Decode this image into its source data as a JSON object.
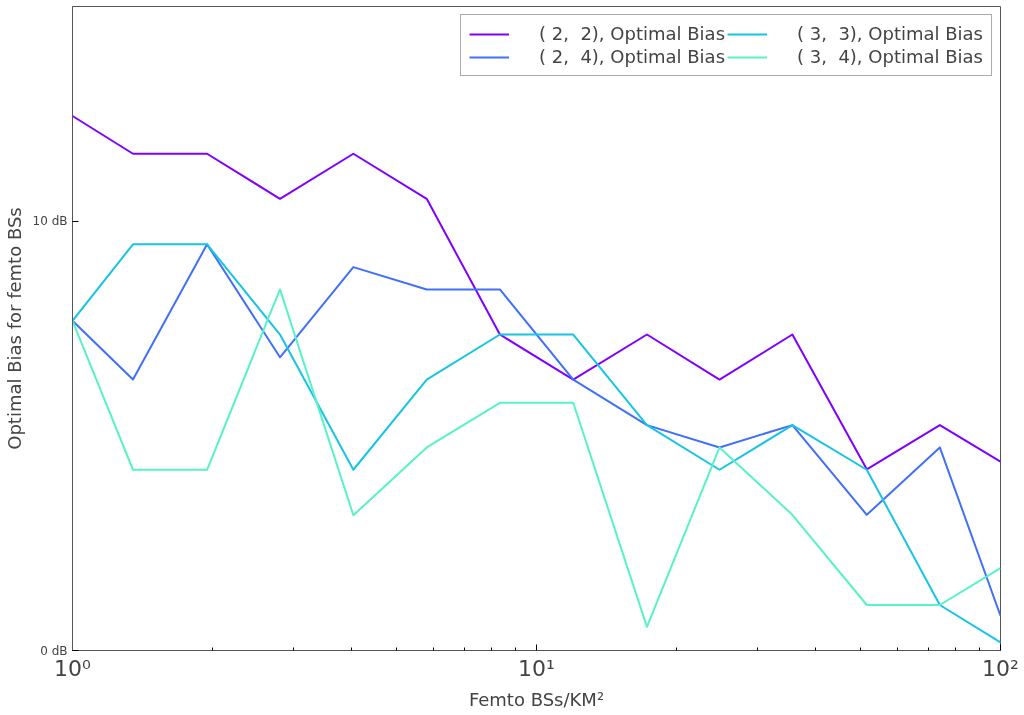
{
  "chart_data": {
    "type": "line",
    "xlabel": "Femto BSs/KM²",
    "ylabel": "Optimal Bias for femto BSs",
    "x": [
      1,
      1.35,
      1.95,
      2.8,
      4.03,
      5.8,
      8.34,
      12.0,
      17.3,
      24.8,
      35.6,
      51.5,
      74,
      100
    ],
    "series": [
      {
        "name": "( 2,  2), Optimal Bias",
        "color": "#8000ff",
        "values": [
          12.45,
          11.57,
          11.57,
          10.52,
          11.57,
          10.52,
          7.36,
          6.31,
          7.36,
          6.31,
          7.36,
          4.22,
          5.25,
          4.4
        ]
      },
      {
        "name": "( 2,  4), Optimal Bias",
        "color": "#4070f8",
        "values": [
          7.68,
          6.31,
          9.46,
          6.83,
          8.93,
          8.41,
          8.41,
          6.31,
          5.25,
          4.73,
          5.25,
          3.16,
          4.73,
          0.81
        ]
      },
      {
        "name": "( 3,  3), Optimal Bias",
        "color": "#18c4e4",
        "values": [
          7.68,
          9.46,
          9.46,
          7.36,
          4.21,
          6.31,
          7.36,
          7.36,
          5.25,
          4.21,
          5.25,
          4.21,
          1.06,
          0.19
        ]
      },
      {
        "name": "( 3,  4), Optimal Bias",
        "color": "#58f2c6",
        "values": [
          7.68,
          4.21,
          4.21,
          8.41,
          3.15,
          4.73,
          5.77,
          5.77,
          0.55,
          4.73,
          3.16,
          1.06,
          1.06,
          1.92
        ]
      }
    ],
    "log": "x",
    "xlim": [
      1,
      100
    ],
    "ylim": [
      0,
      15
    ],
    "xticks": [
      {
        "value": 1,
        "label": "10⁰"
      },
      {
        "value": 10,
        "label": "10¹"
      },
      {
        "value": 100,
        "label": "10²"
      }
    ],
    "yticks": [
      {
        "value": 0,
        "label": "0 dB"
      },
      {
        "value": 10,
        "label": "10 dB"
      }
    ],
    "legend": "top right",
    "grid": false,
    "marker": "none",
    "line_style": "solid"
  }
}
